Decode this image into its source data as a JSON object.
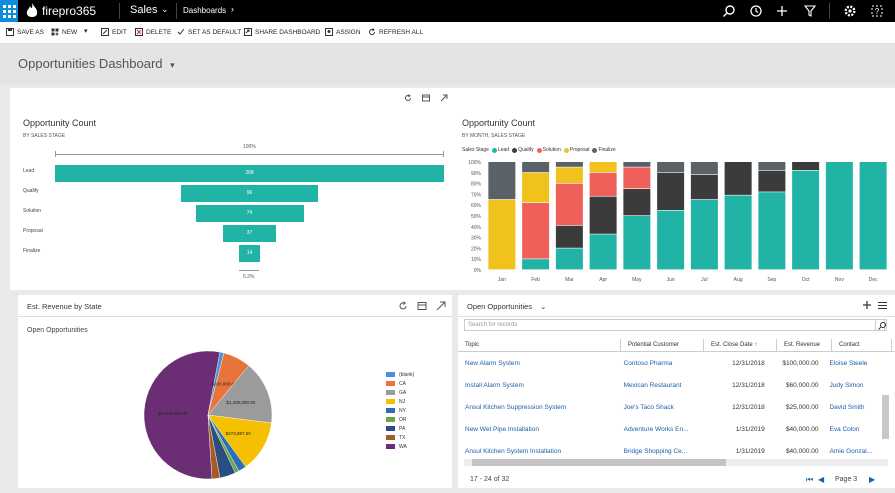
{
  "topbar": {
    "brand": "firepro365",
    "module": "Sales",
    "area": "Dashboards"
  },
  "commands": [
    "SAVE AS",
    "NEW",
    "EDIT",
    "DELETE",
    "SET AS DEFAULT",
    "SHARE DASHBOARD",
    "ASSIGN",
    "REFRESH ALL"
  ],
  "page_title": "Opportunities Dashboard",
  "funnel": {
    "title": "Opportunity Count",
    "subtitle": "BY SALES STAGE",
    "top_label": "100%",
    "bottom_label": "5.2%",
    "color": "#21b3a5",
    "chart_data": {
      "type": "funnel",
      "categories": [
        "Lead",
        "Qualify",
        "Solution",
        "Proposal",
        "Finalize"
      ],
      "values": [
        268,
        96,
        74,
        37,
        14
      ]
    }
  },
  "stacked": {
    "title": "Opportunity Count",
    "subtitle": "BY MONTH, SALES STAGE",
    "legend_title": "Sales Stage",
    "chart_data": {
      "type": "bar",
      "stacked": true,
      "percent": true,
      "categories": [
        "Jan",
        "Feb",
        "Mar",
        "Apr",
        "May",
        "Jun",
        "Jul",
        "Aug",
        "Sep",
        "Oct",
        "Nov",
        "Dec"
      ],
      "yticks": [
        "0%",
        "10%",
        "20%",
        "30%",
        "40%",
        "50%",
        "60%",
        "70%",
        "80%",
        "90%",
        "100%"
      ],
      "series": [
        {
          "name": "Lead",
          "color": "#21b3a5",
          "values": [
            0,
            10,
            20,
            33,
            50,
            55,
            65,
            69,
            72,
            92,
            100,
            100
          ]
        },
        {
          "name": "Qualify",
          "color": "#3b3b3b",
          "values": [
            0,
            0,
            21,
            35,
            25,
            35,
            23,
            31,
            20,
            8,
            0,
            0
          ]
        },
        {
          "name": "Solution",
          "color": "#f0605a",
          "values": [
            0,
            52,
            39,
            22,
            20,
            0,
            0,
            0,
            0,
            0,
            0,
            0
          ]
        },
        {
          "name": "Proposal",
          "color": "#f1c21c",
          "values": [
            65,
            28,
            15,
            10,
            0,
            0,
            0,
            0,
            0,
            0,
            0,
            0
          ]
        },
        {
          "name": "Finalize",
          "color": "#5a6268",
          "values": [
            35,
            10,
            5,
            0,
            5,
            10,
            12,
            0,
            8,
            0,
            0,
            0
          ]
        }
      ]
    }
  },
  "revenue": {
    "title": "Est. Revenue by State",
    "subtitle": "Open Opportunities",
    "chart_data": {
      "type": "pie",
      "categories": [
        "(blank)",
        "CA",
        "GA",
        "NJ",
        "NY",
        "OR",
        "PA",
        "TX",
        "WA"
      ],
      "colors": [
        "#4a90d9",
        "#e8743b",
        "#9b9b9b",
        "#f5c000",
        "#2c6fb5",
        "#6ea34a",
        "#2b4e80",
        "#a65a28",
        "#6b2d74"
      ],
      "values": [
        1,
        7,
        16,
        13,
        2,
        1,
        4,
        2,
        54
      ],
      "slice_labels": [
        "",
        "$200,000.00",
        "$1,200,000.00",
        "$473,887.50",
        "",
        "",
        "",
        "",
        "$4,000,000.00"
      ]
    }
  },
  "grid": {
    "view": "Open Opportunities",
    "search_placeholder": "Search for records",
    "headers": [
      "Topic",
      "Potential Customer",
      "Est. Close Date ↑",
      "Est. Revenue",
      "Contact"
    ],
    "rows": [
      [
        "New Alarm System",
        "Contoso Pharma",
        "12/31/2018",
        "$100,000.00",
        "Eloise Steele"
      ],
      [
        "Install Alarm System",
        "Mexican Restaurant",
        "12/31/2018",
        "$60,000.00",
        "Judy Simon"
      ],
      [
        "Ansul Kitchen Suppression System",
        "Joe's Taco Shack",
        "12/31/2018",
        "$25,000.00",
        "David Smith"
      ],
      [
        "New Wet Pipe Installation",
        "Adventure Works En...",
        "1/31/2019",
        "$40,000.00",
        "Eva Colon"
      ],
      [
        "Ansul Kitchen System Installation",
        "Bridge Shopping Ce...",
        "1/31/2019",
        "$40,000.00",
        "Amie Gonzal..."
      ]
    ],
    "footer": "17 - 24 of 32",
    "page": "Page 3"
  }
}
